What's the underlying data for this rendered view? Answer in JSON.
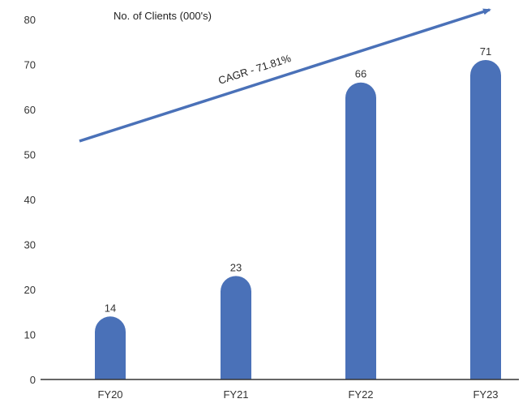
{
  "chart_data": {
    "type": "bar",
    "title": "No. of Clients (000's)",
    "categories": [
      "FY20",
      "FY21",
      "FY22",
      "FY23"
    ],
    "values": [
      14,
      23,
      66,
      71
    ],
    "data_labels": [
      "14",
      "23",
      "66",
      "71"
    ],
    "ylim": [
      0,
      80
    ],
    "yticks": [
      0,
      10,
      20,
      30,
      40,
      50,
      60,
      70,
      80
    ],
    "grid": false,
    "legend": "none",
    "annotation": "CAGR - 71.81%",
    "colors": {
      "bar": "#4a71b8",
      "arrow": "#4a71b8",
      "axis": "#333333"
    }
  }
}
